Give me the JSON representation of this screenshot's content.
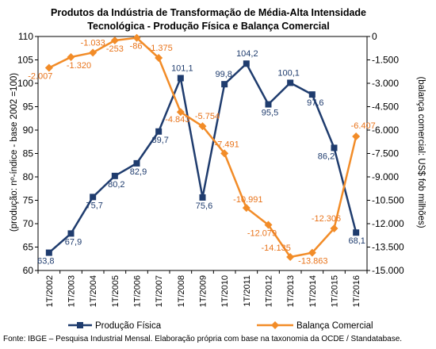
{
  "chart_data": {
    "type": "line",
    "title_line1": "Produtos da Indústria de Transformação de Média-Alta Intensidade",
    "title_line2": "Tecnológica - Produção Física e Balança Comercial",
    "ylabel_left": "(produção: nº-índice - base 2002 =100)",
    "ylabel_right": "(balança comercial: US$ fob milhões)",
    "source": "Fonte: IBGE – Pesquisa Industrial Mensal. Elaboração própria com base na taxonomia da OCDE / Standatabase.",
    "x": [
      "1T/2002",
      "1T/2003",
      "1T/2004",
      "1T/2005",
      "1T/2006",
      "1T/2007",
      "1T/2008",
      "1T/2009",
      "1T/2010",
      "1T/2011",
      "1T/2012",
      "1T/2013",
      "1T/2014",
      "1T/2015",
      "1T/2016"
    ],
    "ylim_left": [
      60,
      110
    ],
    "yticks_left": [
      "60",
      "65",
      "70",
      "75",
      "80",
      "85",
      "90",
      "95",
      "100",
      "105",
      "110"
    ],
    "ylim_right": [
      -15000,
      0
    ],
    "yticks_right": [
      "0",
      "-1.500",
      "-3.000",
      "-4.500",
      "-6.000",
      "-7.500",
      "-9.000",
      "-10.500",
      "-12.000",
      "-13.500",
      "-15.000"
    ],
    "series": [
      {
        "name": "Produção Física",
        "axis": "left",
        "color": "#1F3C6E",
        "marker": "square",
        "values": [
          63.8,
          67.9,
          75.7,
          80.2,
          82.9,
          89.7,
          101.1,
          75.6,
          99.8,
          104.2,
          95.5,
          100.1,
          97.6,
          86.2,
          68.1
        ],
        "labels": [
          "63,8",
          "67,9",
          "75,7",
          "80,2",
          "82,9",
          "89,7",
          "101,1",
          "75,6",
          "99,8",
          "104,2",
          "95,5",
          "100,1",
          "97,6",
          "86,2",
          "68,1"
        ]
      },
      {
        "name": "Balança Comercial",
        "axis": "right",
        "color": "#F28C28",
        "marker": "diamond",
        "values": [
          -2007,
          -1320,
          -1033,
          -253,
          -86,
          -1375,
          -4843,
          -5754,
          -7491,
          -10991,
          -12079,
          -14135,
          -13863,
          -12306,
          -6407
        ],
        "labels": [
          "-2.007",
          "-1.320",
          "-1.033",
          "-253",
          "-86",
          "-1.375",
          "-4.843",
          "-5.754",
          "-7.491",
          "-10.991",
          "-12.079",
          "-14.135",
          "-13.863",
          "-12.306",
          "-6.407"
        ]
      }
    ]
  }
}
